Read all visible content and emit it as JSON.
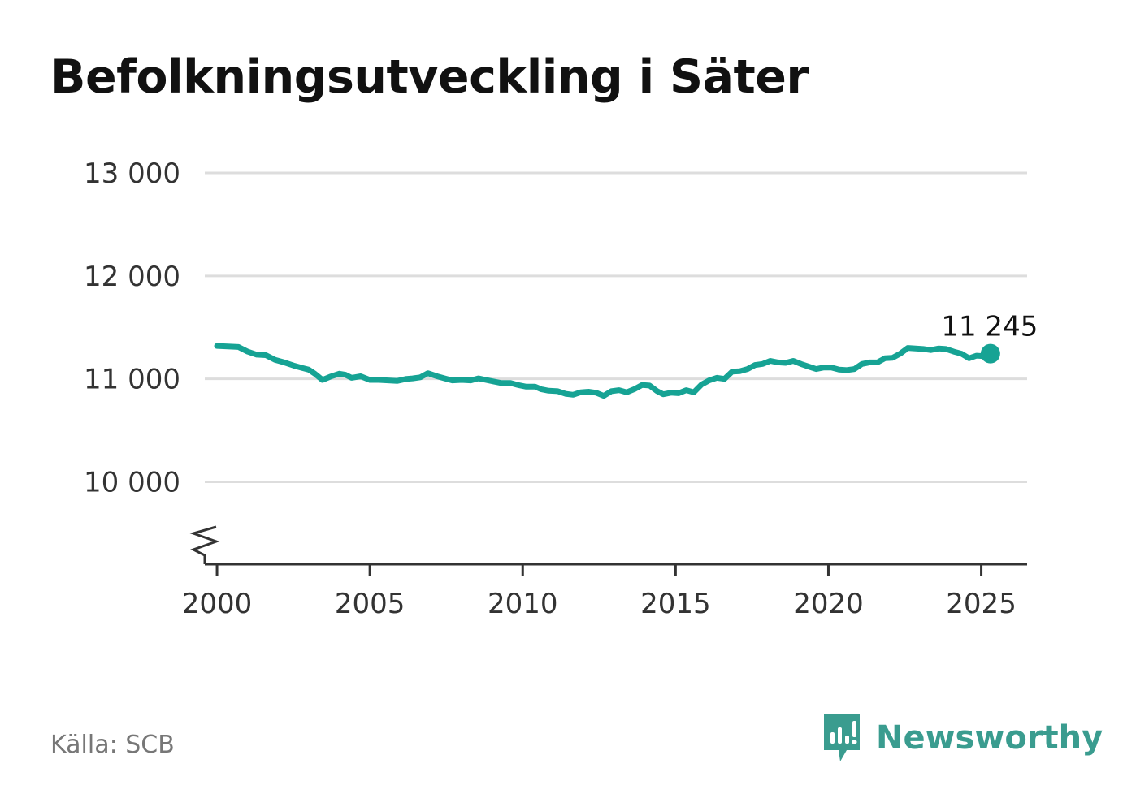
{
  "title": "Befolkningsutveckling i Säter",
  "source": "Källa: SCB",
  "brand": {
    "name": "Newsworthy",
    "icon": "newsworthy-logo-icon"
  },
  "colors": {
    "line": "#16a394",
    "grid": "#dddddd",
    "axis": "#333333",
    "text": "#333333",
    "brand": "#3a9c8f"
  },
  "chart_data": {
    "type": "line",
    "title": "Befolkningsutveckling i Säter",
    "xlabel": "",
    "ylabel": "",
    "xlim": [
      1999.6,
      2026.5
    ],
    "ylim": [
      9200,
      13000
    ],
    "y_ticks": [
      10000,
      11000,
      12000,
      13000
    ],
    "y_tick_labels": [
      "10 000",
      "11 000",
      "12 000",
      "13 000"
    ],
    "x_ticks": [
      2000,
      2005,
      2010,
      2015,
      2020,
      2025
    ],
    "x_tick_labels": [
      "2000",
      "2005",
      "2010",
      "2015",
      "2020",
      "2025"
    ],
    "grid": true,
    "axis_break": true,
    "series": [
      {
        "x": [
          2000.0,
          2000.35,
          2000.7,
          2001.0,
          2001.3,
          2001.6,
          2001.9,
          2002.2,
          2002.5,
          2002.8,
          2003.0,
          2003.2,
          2003.45,
          2003.7,
          2004.0,
          2004.2,
          2004.4,
          2004.7,
          2005.0,
          2005.3,
          2005.6,
          2005.9,
          2006.2,
          2006.4,
          2006.65,
          2006.9,
          2007.2,
          2007.45,
          2007.7,
          2008.0,
          2008.3,
          2008.55,
          2008.8,
          2009.05,
          2009.3,
          2009.6,
          2009.85,
          2010.1,
          2010.4,
          2010.6,
          2010.85,
          2011.15,
          2011.4,
          2011.65,
          2011.9,
          2012.15,
          2012.4,
          2012.65,
          2012.9,
          2013.15,
          2013.4,
          2013.65,
          2013.9,
          2014.15,
          2014.4,
          2014.6,
          2014.85,
          2015.1,
          2015.35,
          2015.6,
          2015.85,
          2016.1,
          2016.35,
          2016.6,
          2016.85,
          2017.1,
          2017.35,
          2017.6,
          2017.85,
          2018.1,
          2018.35,
          2018.6,
          2018.85,
          2019.1,
          2019.35,
          2019.6,
          2019.85,
          2020.1,
          2020.35,
          2020.6,
          2020.85,
          2021.1,
          2021.35,
          2021.6,
          2021.85,
          2022.1,
          2022.35,
          2022.6,
          2022.85,
          2023.1,
          2023.35,
          2023.6,
          2023.85,
          2024.1,
          2024.35,
          2024.6,
          2024.85,
          2025.1,
          2025.3
        ],
        "values": [
          11320,
          11315,
          11310,
          11265,
          11235,
          11230,
          11185,
          11160,
          11130,
          11105,
          11090,
          11050,
          10990,
          11020,
          11050,
          11040,
          11010,
          11025,
          10990,
          10990,
          10985,
          10980,
          11000,
          11005,
          11015,
          11055,
          11025,
          11005,
          10985,
          10990,
          10985,
          11005,
          10990,
          10975,
          10960,
          10960,
          10940,
          10925,
          10925,
          10900,
          10885,
          10880,
          10855,
          10845,
          10870,
          10875,
          10865,
          10835,
          10880,
          10890,
          10870,
          10900,
          10940,
          10935,
          10880,
          10850,
          10865,
          10860,
          10890,
          10870,
          10945,
          10985,
          11010,
          11000,
          11070,
          11075,
          11095,
          11135,
          11145,
          11175,
          11160,
          11155,
          11175,
          11145,
          11120,
          11095,
          11110,
          11110,
          11090,
          11085,
          11095,
          11145,
          11160,
          11160,
          11200,
          11205,
          11245,
          11300,
          11295,
          11290,
          11280,
          11295,
          11290,
          11265,
          11245,
          11200,
          11225,
          11220,
          11245
        ]
      }
    ],
    "last_label": "11 245"
  }
}
